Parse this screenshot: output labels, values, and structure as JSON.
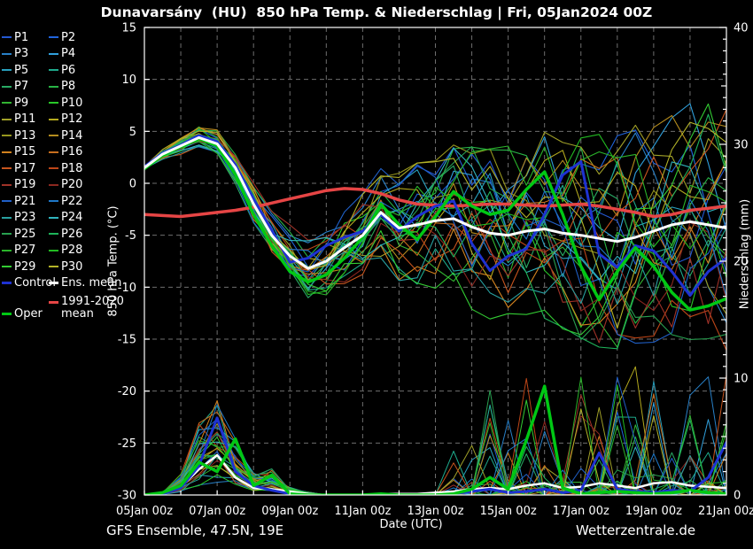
{
  "title": "Dunavarsány  (HU)  850 hPa Temp. & Niederschlag | Fri, 05Jan2024 00Z",
  "footer": {
    "left": "GFS Ensemble, 47.5N, 19E",
    "right": "Wetterzentrale.de"
  },
  "colors": {
    "background": "#000000",
    "text": "#ffffff",
    "grid": "#6e6e6e",
    "frame": "#ffffff",
    "control": "#1e32d2",
    "ens_mean": "#ffffff",
    "climate_mean": "#e64545",
    "oper": "#00c814"
  },
  "legend": {
    "control_label": "Control",
    "ens_mean_label": "Ens. mean",
    "climate_label": "1991-2020 mean",
    "oper_label": "Oper",
    "members": [
      {
        "label": "P1",
        "color": "#2458d2"
      },
      {
        "label": "P2",
        "color": "#2064dc"
      },
      {
        "label": "P3",
        "color": "#2880c8"
      },
      {
        "label": "P4",
        "color": "#30a0dc"
      },
      {
        "label": "P5",
        "color": "#28a0be"
      },
      {
        "label": "P6",
        "color": "#1eaa8c"
      },
      {
        "label": "P7",
        "color": "#28aa64"
      },
      {
        "label": "P8",
        "color": "#28b446"
      },
      {
        "label": "P9",
        "color": "#32b432"
      },
      {
        "label": "P10",
        "color": "#28c828"
      },
      {
        "label": "P11",
        "color": "#a0a028"
      },
      {
        "label": "P12",
        "color": "#b4aa1e"
      },
      {
        "label": "P13",
        "color": "#96961e"
      },
      {
        "label": "P14",
        "color": "#b48c1e"
      },
      {
        "label": "P15",
        "color": "#d2821e"
      },
      {
        "label": "P16",
        "color": "#c86e1e"
      },
      {
        "label": "P17",
        "color": "#c8551e"
      },
      {
        "label": "P18",
        "color": "#be4618"
      },
      {
        "label": "P19",
        "color": "#a03228"
      },
      {
        "label": "P20",
        "color": "#8c2820"
      },
      {
        "label": "P21",
        "color": "#2060c8"
      },
      {
        "label": "P22",
        "color": "#1e78c8"
      },
      {
        "label": "P23",
        "color": "#28a0a0"
      },
      {
        "label": "P24",
        "color": "#30b4be"
      },
      {
        "label": "P25",
        "color": "#28a050"
      },
      {
        "label": "P26",
        "color": "#1eb45a"
      },
      {
        "label": "P27",
        "color": "#2ab42a"
      },
      {
        "label": "P28",
        "color": "#22bb22"
      },
      {
        "label": "P29",
        "color": "#33cc33"
      },
      {
        "label": "P30",
        "color": "#b4b428"
      }
    ]
  },
  "chart_data": {
    "type": "line",
    "title": "Dunavarsány (HU) 850 hPa Temp. & Niederschlag | Fri, 05Jan2024 00Z",
    "xlabel": "Date (UTC)",
    "ylabel_left": "850 hPa Temp. (°C)",
    "ylabel_right": "Niederschlag (mm)",
    "x_tick_labels": [
      "05Jan 00z",
      "07Jan 00z",
      "09Jan 00z",
      "11Jan 00z",
      "13Jan 00z",
      "15Jan 00z",
      "17Jan 00z",
      "19Jan 00z",
      "21Jan 00z"
    ],
    "x_tick_days": [
      0,
      2,
      4,
      6,
      8,
      10,
      12,
      14,
      16
    ],
    "x_range_days": [
      0,
      16
    ],
    "time_step_hours": 12,
    "y_left_ticks": [
      15,
      10,
      5,
      0,
      -5,
      -10,
      -15,
      -20,
      -25,
      -30
    ],
    "y_left_range": [
      -30,
      15
    ],
    "y_right_ticks": [
      0,
      10,
      20,
      30,
      40
    ],
    "y_right_range": [
      0,
      40
    ],
    "grid": "dashed, vertical every 1 day, horizontal every 5 °C",
    "legend_position": "left margin",
    "series": {
      "ens_mean_temp": [
        1.5,
        2.8,
        3.6,
        4.4,
        3.8,
        1.5,
        -2.0,
        -5.0,
        -7.0,
        -8.2,
        -7.5,
        -6.2,
        -5.0,
        -2.8,
        -4.3,
        -4.0,
        -3.6,
        -3.4,
        -4.2,
        -4.8,
        -5.0,
        -4.6,
        -4.4,
        -4.8,
        -5.0,
        -5.3,
        -5.6,
        -5.2,
        -4.6,
        -4.0,
        -3.7,
        -4.0,
        -4.3
      ],
      "control_temp": [
        1.6,
        2.9,
        3.7,
        4.6,
        4.0,
        1.8,
        -1.5,
        -4.5,
        -7.6,
        -7.2,
        -6.0,
        -5.2,
        -4.6,
        -3.0,
        -4.6,
        -3.2,
        -2.2,
        -1.7,
        -5.8,
        -8.4,
        -7.0,
        -6.3,
        -3.0,
        0.8,
        2.1,
        -6.8,
        -8.1,
        -6.0,
        -6.5,
        -8.5,
        -10.8,
        -8.5,
        -7.2
      ],
      "oper_temp": [
        1.4,
        2.7,
        3.5,
        4.3,
        3.6,
        0.8,
        -3.0,
        -6.0,
        -8.5,
        -9.5,
        -8.8,
        -7.2,
        -5.2,
        -2.0,
        -4.0,
        -5.4,
        -3.2,
        -0.8,
        -2.2,
        -3.0,
        -2.6,
        -0.6,
        1.1,
        -3.0,
        -8.0,
        -11.2,
        -8.5,
        -6.2,
        -8.0,
        -10.5,
        -12.2,
        -11.8,
        -11.1
      ],
      "climate_mean_temp": [
        -3.0,
        -3.1,
        -3.2,
        -3.0,
        -2.8,
        -2.6,
        -2.3,
        -1.9,
        -1.5,
        -1.1,
        -0.7,
        -0.5,
        -0.6,
        -1.0,
        -1.6,
        -2.0,
        -2.1,
        -2.2,
        -2.1,
        -2.0,
        -2.0,
        -2.1,
        -2.2,
        -2.1,
        -2.0,
        -2.2,
        -2.5,
        -2.8,
        -3.2,
        -3.0,
        -2.6,
        -2.4,
        -2.2
      ],
      "ens_mean_precip": [
        0,
        0.1,
        0.7,
        2.2,
        3.4,
        1.5,
        0.6,
        0.5,
        0.3,
        0.1,
        0,
        0,
        0,
        0.1,
        0.1,
        0.1,
        0.2,
        0.3,
        0.5,
        0.6,
        0.5,
        0.8,
        1.0,
        0.6,
        0.7,
        1.0,
        0.8,
        0.6,
        1.0,
        1.1,
        0.8,
        0.7,
        0.6
      ],
      "control_precip": [
        0,
        0.1,
        0.6,
        2.5,
        6.6,
        2.0,
        0.8,
        0.4,
        0.1,
        0,
        0,
        0,
        0,
        0,
        0,
        0,
        0,
        0.1,
        0.3,
        0.5,
        0.2,
        0.3,
        0.5,
        0.2,
        0.4,
        3.6,
        0.5,
        0.3,
        0.2,
        0.4,
        0.3,
        1.5,
        4.5
      ],
      "oper_precip": [
        0,
        0.2,
        0.8,
        2.8,
        2.0,
        4.8,
        0.8,
        1.7,
        0.1,
        0,
        0,
        0,
        0,
        0.1,
        0,
        0,
        0,
        0.1,
        0.5,
        1.5,
        0.5,
        4.7,
        9.3,
        0.6,
        0.1,
        0.2,
        0.3,
        0.2,
        0.1,
        0.2,
        0.4,
        0.2,
        0.1
      ]
    },
    "ensemble": {
      "note": "30 perturbation members drawn as spaghetti around ens_mean_temp with growing spread",
      "spread_temp": [
        0.3,
        0.5,
        0.7,
        0.8,
        0.9,
        1.1,
        1.4,
        1.7,
        2.0,
        2.2,
        2.5,
        2.8,
        3.0,
        3.5,
        4.0,
        4.5,
        5.0,
        5.5,
        6.0,
        6.2,
        6.5,
        6.8,
        7.0,
        7.2,
        7.5,
        7.8,
        8.0,
        8.0,
        8.0,
        8.2,
        8.5,
        8.7,
        9.0
      ],
      "precip_event1_profile": [
        0,
        0.1,
        0.8,
        2.5,
        3.5,
        2.0,
        0.8,
        0.9,
        0.3,
        0.1,
        0,
        0,
        0,
        0,
        0,
        0,
        0,
        0,
        0,
        0,
        0,
        0,
        0,
        0,
        0,
        0,
        0,
        0,
        0,
        0,
        0,
        0,
        0
      ],
      "member_seeds": [
        1,
        2,
        3,
        4,
        5,
        6,
        7,
        8,
        9,
        10,
        11,
        12,
        13,
        14,
        15,
        16,
        17,
        18,
        19,
        20,
        21,
        22,
        23,
        24,
        25,
        26,
        27,
        28,
        29,
        30
      ]
    }
  }
}
